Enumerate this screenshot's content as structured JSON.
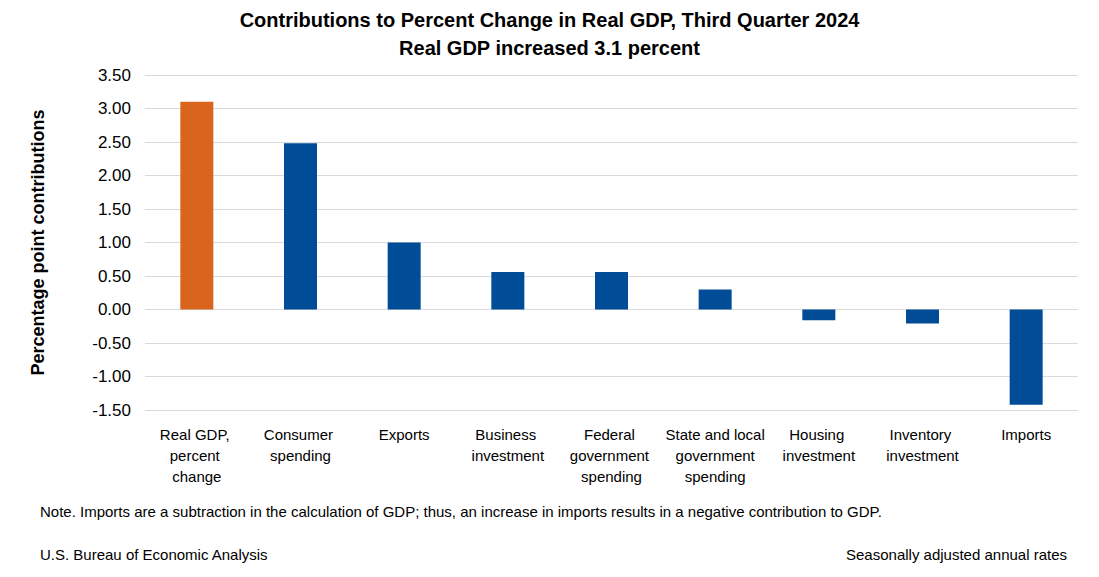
{
  "chart_data": {
    "type": "bar",
    "title": "Contributions to Percent Change in Real GDP, Third Quarter 2024",
    "subtitle": "Real GDP increased 3.1 percent",
    "y_label": "Percentage point contributions",
    "categories": [
      "Real GDP, percent change",
      "Consumer spending",
      "Exports",
      "Business investment",
      "Federal government spending",
      "State and local government spending",
      "Housing investment",
      "Inventory investment",
      "Imports"
    ],
    "values": [
      3.1,
      2.48,
      1.0,
      0.56,
      0.56,
      0.3,
      -0.16,
      -0.21,
      -1.42
    ],
    "colors": [
      "#d9641e",
      "#004c97",
      "#004c97",
      "#004c97",
      "#004c97",
      "#004c97",
      "#004c97",
      "#004c97",
      "#004c97"
    ],
    "ylim": [
      -1.5,
      3.5
    ],
    "yticks": [
      {
        "value": -1.5,
        "label": "-1.50"
      },
      {
        "value": -1.0,
        "label": "-1.00"
      },
      {
        "value": -0.5,
        "label": "-0.50"
      },
      {
        "value": 0,
        "label": "0.00"
      },
      {
        "value": 0.5,
        "label": "0.50"
      },
      {
        "value": 1.0,
        "label": "1.00"
      },
      {
        "value": 1.5,
        "label": "1.50"
      },
      {
        "value": 2.0,
        "label": "2.00"
      },
      {
        "value": 2.5,
        "label": "2.50"
      },
      {
        "value": 3.0,
        "label": "3.00"
      },
      {
        "value": 3.5,
        "label": "3.50"
      }
    ],
    "grid": true,
    "annotations": [
      "Note. Imports are a subtraction in the calculation of GDP; thus, an increase in imports results in a negative contribution to GDP.",
      "U.S. Bureau of Economic Analysis",
      "Seasonally adjusted annual rates"
    ]
  }
}
